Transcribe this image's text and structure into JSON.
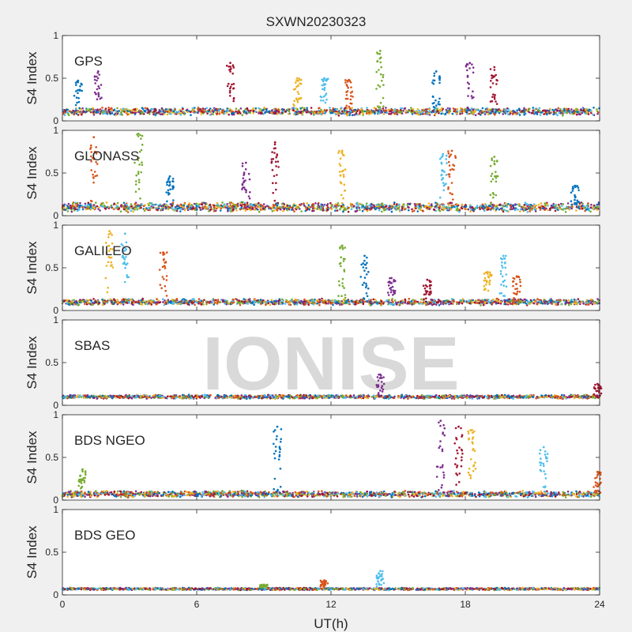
{
  "figure": {
    "title": "SXWN20230323",
    "watermark": "IONISE"
  },
  "chart_data": {
    "type": "scatter",
    "title": "SXWN20230323",
    "xlabel": "UT(h)",
    "xlim": [
      0,
      24
    ],
    "xticks": [
      0,
      6,
      12,
      18,
      24
    ],
    "ylabel": "S4 Index",
    "ylim": [
      0,
      1
    ],
    "yticks": [
      0,
      0.5,
      1
    ],
    "series_colors": [
      "#0072BD",
      "#D95319",
      "#EDB120",
      "#7E2F8E",
      "#77AC30",
      "#4DBEEE",
      "#A2142F"
    ],
    "panels": [
      {
        "name": "GPS",
        "baseline": 0.11,
        "noise": 0.05,
        "events": [
          {
            "x": 0.7,
            "y": 0.47
          },
          {
            "x": 1.6,
            "y": 0.58
          },
          {
            "x": 7.5,
            "y": 0.68
          },
          {
            "x": 10.5,
            "y": 0.5
          },
          {
            "x": 11.7,
            "y": 0.5
          },
          {
            "x": 12.8,
            "y": 0.48
          },
          {
            "x": 14.2,
            "y": 0.82
          },
          {
            "x": 16.7,
            "y": 0.58
          },
          {
            "x": 18.2,
            "y": 0.68
          },
          {
            "x": 19.3,
            "y": 0.63
          }
        ]
      },
      {
        "name": "GLONASS",
        "baseline": 0.1,
        "noise": 0.06,
        "events": [
          {
            "x": 1.4,
            "y": 0.92
          },
          {
            "x": 3.4,
            "y": 0.96
          },
          {
            "x": 4.8,
            "y": 0.46
          },
          {
            "x": 8.2,
            "y": 0.62
          },
          {
            "x": 9.5,
            "y": 0.86
          },
          {
            "x": 12.5,
            "y": 0.76
          },
          {
            "x": 17.0,
            "y": 0.72
          },
          {
            "x": 17.4,
            "y": 0.76
          },
          {
            "x": 19.3,
            "y": 0.69
          },
          {
            "x": 22.9,
            "y": 0.35
          }
        ]
      },
      {
        "name": "GALILEO",
        "baseline": 0.1,
        "noise": 0.04,
        "events": [
          {
            "x": 2.1,
            "y": 0.93
          },
          {
            "x": 2.8,
            "y": 0.9
          },
          {
            "x": 4.5,
            "y": 0.68
          },
          {
            "x": 12.5,
            "y": 0.76
          },
          {
            "x": 13.5,
            "y": 0.64
          },
          {
            "x": 14.7,
            "y": 0.38
          },
          {
            "x": 16.3,
            "y": 0.36
          },
          {
            "x": 19.0,
            "y": 0.45
          },
          {
            "x": 19.7,
            "y": 0.64
          },
          {
            "x": 20.3,
            "y": 0.4
          }
        ]
      },
      {
        "name": "SBAS",
        "baseline": 0.1,
        "noise": 0.025,
        "events": [
          {
            "x": 14.2,
            "y": 0.36
          },
          {
            "x": 23.9,
            "y": 0.25
          }
        ]
      },
      {
        "name": "BDS NGEO",
        "baseline": 0.07,
        "noise": 0.04,
        "events": [
          {
            "x": 0.9,
            "y": 0.36
          },
          {
            "x": 9.6,
            "y": 0.86
          },
          {
            "x": 16.9,
            "y": 0.93
          },
          {
            "x": 17.7,
            "y": 0.86
          },
          {
            "x": 18.3,
            "y": 0.82
          },
          {
            "x": 21.5,
            "y": 0.62
          },
          {
            "x": 23.9,
            "y": 0.33
          }
        ]
      },
      {
        "name": "BDS GEO",
        "baseline": 0.07,
        "noise": 0.015,
        "events": [
          {
            "x": 14.2,
            "y": 0.28
          },
          {
            "x": 11.7,
            "y": 0.17
          },
          {
            "x": 9.0,
            "y": 0.12
          }
        ]
      }
    ]
  }
}
